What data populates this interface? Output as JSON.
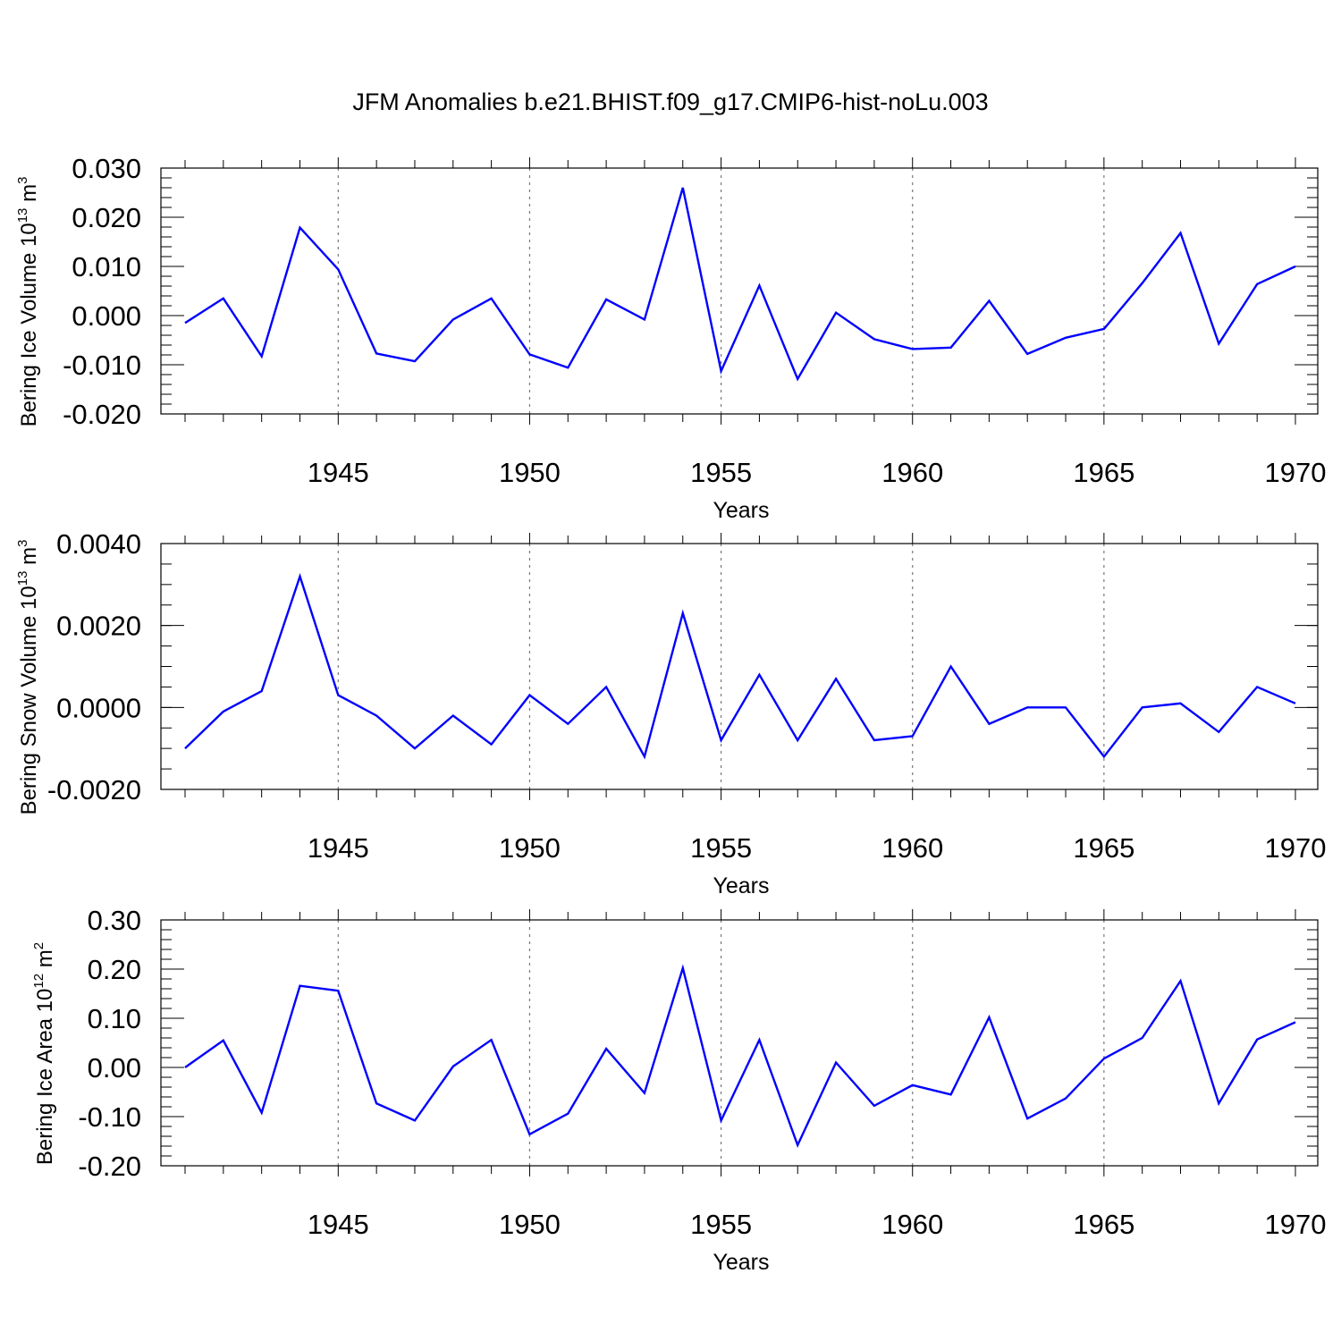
{
  "title": "JFM Anomalies b.e21.BHIST.f09_g17.CMIP6-hist-noLu.003",
  "colors": {
    "line": "#0000ff",
    "axis": "#000000",
    "grid": "#777777"
  },
  "chart_data": [
    {
      "type": "line",
      "title": "JFM Anomalies b.e21.BHIST.f09_g17.CMIP6-hist-noLu.003",
      "xlabel": "Years",
      "ylabel": {
        "base": "Bering Ice Volume 10",
        "exp": "13",
        "unit": " m",
        "unit_exp": "3"
      },
      "xlim": [
        1941,
        1970
      ],
      "ylim": [
        -0.02,
        0.03
      ],
      "yticks": [
        -0.02,
        -0.01,
        0.0,
        0.01,
        0.02,
        0.03
      ],
      "ytick_labels": [
        "-0.020",
        "-0.010",
        "0.000",
        "0.010",
        "0.020",
        "0.030"
      ],
      "yminor_step": 0.002,
      "xticks": [
        1945,
        1950,
        1955,
        1960,
        1965,
        1970
      ],
      "xtick_labels": [
        "1945",
        "1950",
        "1955",
        "1960",
        "1965",
        "1970"
      ],
      "grid": true,
      "x": [
        1941,
        1942,
        1943,
        1944,
        1945,
        1946,
        1947,
        1948,
        1949,
        1950,
        1951,
        1952,
        1953,
        1954,
        1955,
        1956,
        1957,
        1958,
        1959,
        1960,
        1961,
        1962,
        1963,
        1964,
        1965,
        1966,
        1967,
        1968,
        1969,
        1970
      ],
      "series": [
        {
          "name": "Bering Ice Volume",
          "values": [
            -0.0015,
            0.0035,
            -0.0083,
            0.0179,
            0.0094,
            -0.0077,
            -0.0093,
            -0.0008,
            0.0035,
            -0.0079,
            -0.0106,
            0.0033,
            -0.0008,
            0.026,
            -0.0113,
            0.0061,
            -0.0129,
            0.0006,
            -0.0048,
            -0.0068,
            -0.0065,
            0.003,
            -0.0078,
            -0.0045,
            -0.0027,
            0.0066,
            0.0168,
            -0.0057,
            0.0064,
            0.01
          ]
        }
      ]
    },
    {
      "type": "line",
      "xlabel": "Years",
      "ylabel": {
        "base": "Bering Snow Volume 10",
        "exp": "13",
        "unit": " m",
        "unit_exp": "3"
      },
      "xlim": [
        1941,
        1970
      ],
      "ylim": [
        -0.002,
        0.004
      ],
      "yticks": [
        -0.002,
        0.0,
        0.002,
        0.004
      ],
      "ytick_labels": [
        "-0.0020",
        "0.0000",
        "0.0020",
        "0.0040"
      ],
      "yminor_step": 0.0005,
      "xticks": [
        1945,
        1950,
        1955,
        1960,
        1965,
        1970
      ],
      "xtick_labels": [
        "1945",
        "1950",
        "1955",
        "1960",
        "1965",
        "1970"
      ],
      "grid": true,
      "x": [
        1941,
        1942,
        1943,
        1944,
        1945,
        1946,
        1947,
        1948,
        1949,
        1950,
        1951,
        1952,
        1953,
        1954,
        1955,
        1956,
        1957,
        1958,
        1959,
        1960,
        1961,
        1962,
        1963,
        1964,
        1965,
        1966,
        1967,
        1968,
        1969,
        1970
      ],
      "series": [
        {
          "name": "Bering Snow Volume",
          "values": [
            -0.001,
            -0.0001,
            0.0004,
            0.0032,
            0.0003,
            -0.0002,
            -0.001,
            -0.0002,
            -0.0009,
            0.0003,
            -0.0004,
            0.0005,
            -0.0012,
            0.0023,
            -0.0008,
            0.0008,
            -0.0008,
            0.0007,
            -0.0008,
            -0.0007,
            0.001,
            -0.0004,
            0.0,
            0.0,
            -0.0012,
            0.0,
            0.0001,
            -0.0006,
            0.0005,
            0.0001
          ]
        }
      ]
    },
    {
      "type": "line",
      "xlabel": "Years",
      "ylabel": {
        "base": "Bering Ice Area 10",
        "exp": "12",
        "unit": " m",
        "unit_exp": "2"
      },
      "xlim": [
        1941,
        1970
      ],
      "ylim": [
        -0.2,
        0.3
      ],
      "yticks": [
        -0.2,
        -0.1,
        0.0,
        0.1,
        0.2,
        0.3
      ],
      "ytick_labels": [
        "-0.20",
        "-0.10",
        "0.00",
        "0.10",
        "0.20",
        "0.30"
      ],
      "yminor_step": 0.02,
      "xticks": [
        1945,
        1950,
        1955,
        1960,
        1965,
        1970
      ],
      "xtick_labels": [
        "1945",
        "1950",
        "1955",
        "1960",
        "1965",
        "1970"
      ],
      "grid": true,
      "x": [
        1941,
        1942,
        1943,
        1944,
        1945,
        1946,
        1947,
        1948,
        1949,
        1950,
        1951,
        1952,
        1953,
        1954,
        1955,
        1956,
        1957,
        1958,
        1959,
        1960,
        1961,
        1962,
        1963,
        1964,
        1965,
        1966,
        1967,
        1968,
        1969,
        1970
      ],
      "series": [
        {
          "name": "Bering Ice Area",
          "values": [
            0.0,
            0.055,
            -0.092,
            0.166,
            0.156,
            -0.073,
            -0.108,
            0.002,
            0.056,
            -0.136,
            -0.094,
            0.038,
            -0.052,
            0.202,
            -0.108,
            0.056,
            -0.158,
            0.01,
            -0.078,
            -0.036,
            -0.055,
            0.102,
            -0.104,
            -0.063,
            0.018,
            0.06,
            0.176,
            -0.073,
            0.057,
            0.092
          ]
        }
      ]
    }
  ]
}
